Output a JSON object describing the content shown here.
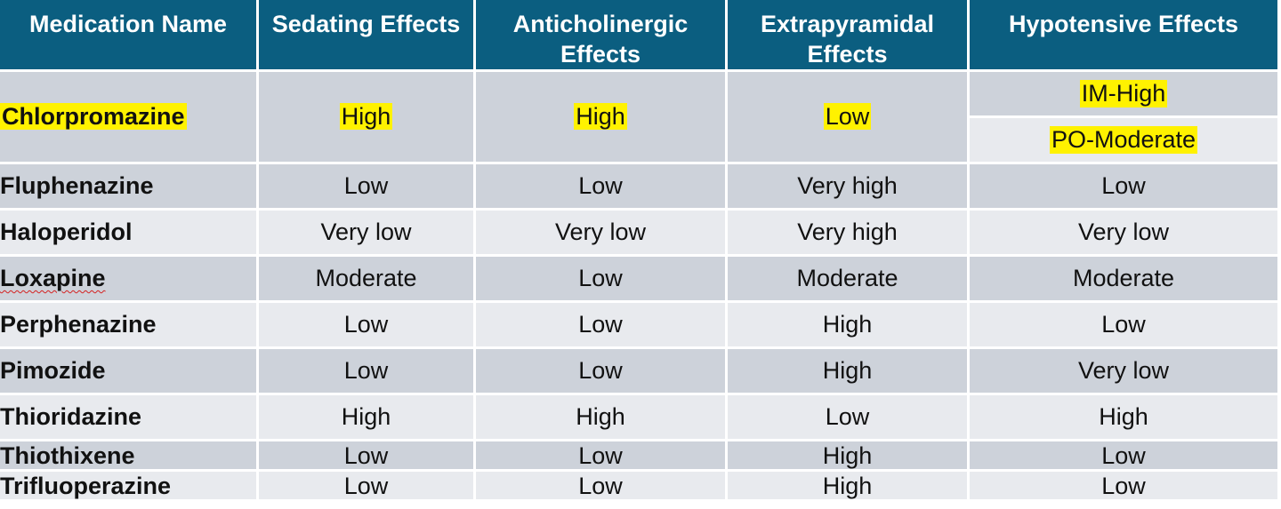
{
  "table": {
    "headers": [
      "Medication Name",
      "Sedating Effects",
      "Anticholinergic Effects",
      "Extrapyramidal Effects",
      "Hypotensive Effects"
    ],
    "first_row": {
      "name": "Chlorpromazine",
      "sedating": "High",
      "anticholinergic": "High",
      "extrapyramidal": "Low",
      "hypotensive_im": "IM-High",
      "hypotensive_po": "PO-Moderate"
    },
    "rows": [
      {
        "name": "Fluphenazine",
        "sedating": "Low",
        "anticholinergic": "Low",
        "extrapyramidal": "Very high",
        "hypotensive": "Low"
      },
      {
        "name": "Haloperidol",
        "sedating": "Very low",
        "anticholinergic": "Very low",
        "extrapyramidal": "Very high",
        "hypotensive": "Very low"
      },
      {
        "name": "Loxapine",
        "sedating": "Moderate",
        "anticholinergic": "Low",
        "extrapyramidal": "Moderate",
        "hypotensive": "Moderate"
      },
      {
        "name": "Perphenazine",
        "sedating": "Low",
        "anticholinergic": "Low",
        "extrapyramidal": "High",
        "hypotensive": "Low"
      },
      {
        "name": "Pimozide",
        "sedating": "Low",
        "anticholinergic": "Low",
        "extrapyramidal": "High",
        "hypotensive": "Very low"
      },
      {
        "name": "Thioridazine",
        "sedating": "High",
        "anticholinergic": "High",
        "extrapyramidal": "Low",
        "hypotensive": "High"
      },
      {
        "name": "Thiothixene",
        "sedating": "Low",
        "anticholinergic": "Low",
        "extrapyramidal": "High",
        "hypotensive": "Low"
      },
      {
        "name": "Trifluoperazine",
        "sedating": "Low",
        "anticholinergic": "Low",
        "extrapyramidal": "High",
        "hypotensive": "Low"
      }
    ]
  },
  "colors": {
    "header_bg": "#0b5e80",
    "row_dark": "#cdd2da",
    "row_light": "#e8eaee",
    "highlight": "#fff200"
  }
}
